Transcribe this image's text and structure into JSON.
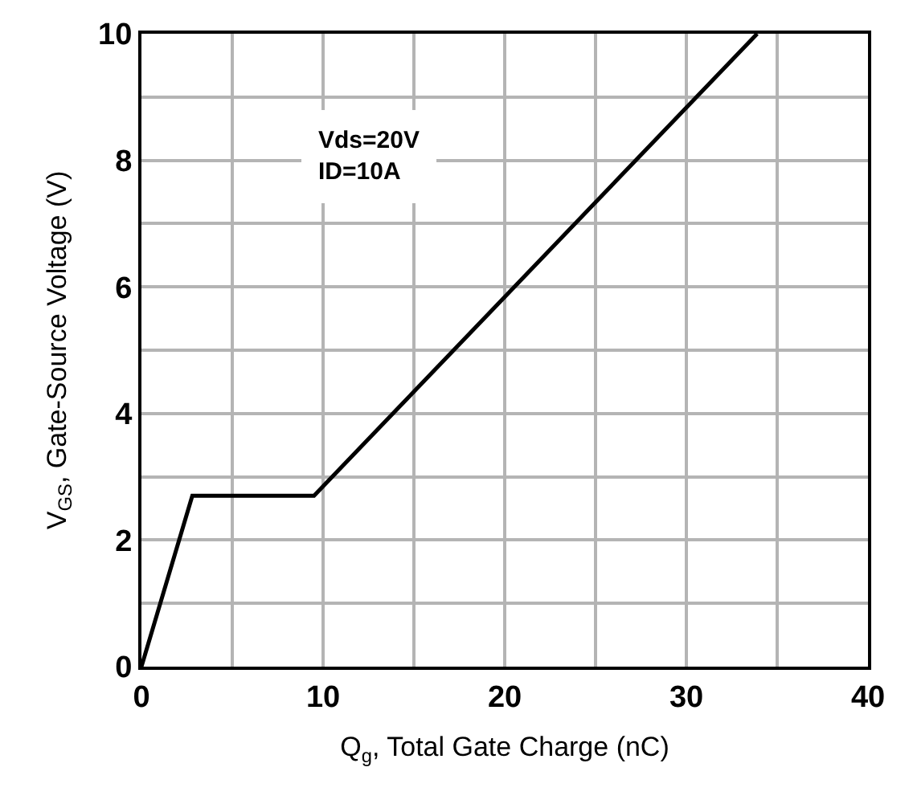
{
  "chart_data": {
    "type": "line",
    "xlabel": "Q$_{g}$, Total Gate Charge (nC)",
    "ylabel": "V$_{GS}$, Gate-Source Voltage (V)",
    "annotations": [
      "Vds=20V\nID=10A"
    ],
    "series": [
      {
        "color": "#000000",
        "x": [
          0,
          2.8,
          9.5,
          33.9
        ],
        "values": [
          0,
          2.7,
          2.7,
          10
        ]
      }
    ],
    "xlim": [
      0,
      40
    ],
    "ylim": [
      0,
      10
    ],
    "xticks": [
      0,
      {
        "value": 5,
        "label": null
      },
      10,
      {
        "value": 15,
        "label": null
      },
      20,
      {
        "value": 25,
        "label": null
      },
      30,
      {
        "value": 35,
        "label": null
      },
      40
    ],
    "yticks": [
      0,
      {
        "value": 1,
        "label": null
      },
      2,
      {
        "value": 3,
        "label": null
      },
      4,
      {
        "value": 5,
        "label": null
      },
      6,
      {
        "value": 7,
        "label": null
      },
      8,
      {
        "value": 9,
        "label": null
      },
      10
    ],
    "grid": true,
    "marker": "none",
    "line_style": "solid"
  }
}
